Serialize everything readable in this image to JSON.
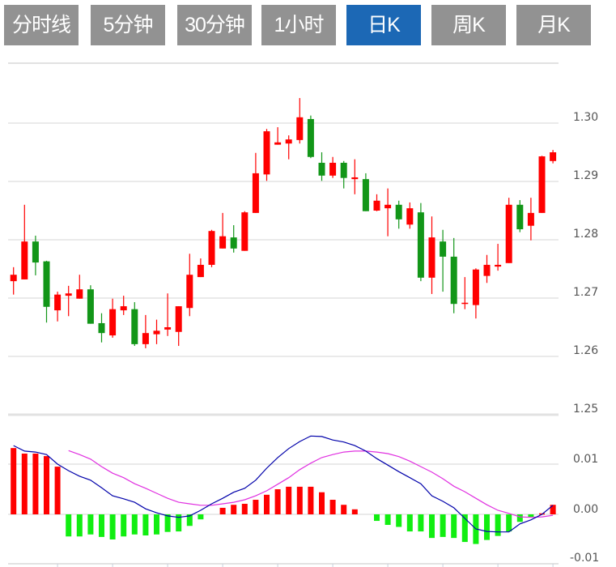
{
  "tabs": [
    {
      "label": "分时线",
      "active": false
    },
    {
      "label": "5分钟",
      "active": false
    },
    {
      "label": "30分钟",
      "active": false
    },
    {
      "label": "1小时",
      "active": false
    },
    {
      "label": "日K",
      "active": true
    },
    {
      "label": "周K",
      "active": false
    },
    {
      "label": "月K",
      "active": false
    }
  ],
  "colors": {
    "up": "#ff0000",
    "down": "#129618",
    "hist_up": "#ff0000",
    "hist_down": "#11ee11",
    "dif": "#0000aa",
    "dea": "#e030e0",
    "grid": "#dddddd",
    "active_tab": "#1c68b5",
    "tab": "#929292"
  },
  "chart_data": [
    {
      "type": "candlestick",
      "y_ticks": [
        "1.25",
        "1.26",
        "1.27",
        "1.28",
        "1.29",
        "1.30"
      ],
      "ylim": [
        1.25,
        1.31
      ],
      "grid": true,
      "ohlc": [
        [
          1.2729,
          1.2753,
          1.2706,
          1.274
        ],
        [
          1.2732,
          1.286,
          1.2732,
          1.2797
        ],
        [
          1.2797,
          1.2807,
          1.2739,
          1.2761
        ],
        [
          1.2763,
          1.2764,
          1.2658,
          1.2685
        ],
        [
          1.2679,
          1.2711,
          1.266,
          1.2706
        ],
        [
          1.2704,
          1.2721,
          1.2669,
          1.2708
        ],
        [
          1.2699,
          1.274,
          1.2699,
          1.2715
        ],
        [
          1.2715,
          1.2722,
          1.2656,
          1.2656
        ],
        [
          1.2657,
          1.2674,
          1.2624,
          1.264
        ],
        [
          1.2636,
          1.2699,
          1.2632,
          1.2681
        ],
        [
          1.2679,
          1.2704,
          1.2671,
          1.2686
        ],
        [
          1.2681,
          1.2693,
          1.2618,
          1.2621
        ],
        [
          1.2621,
          1.2671,
          1.2614,
          1.264
        ],
        [
          1.2638,
          1.2663,
          1.2621,
          1.2644
        ],
        [
          1.2646,
          1.2708,
          1.2635,
          1.265
        ],
        [
          1.2642,
          1.2686,
          1.2618,
          1.2686
        ],
        [
          1.2683,
          1.2776,
          1.2669,
          1.274
        ],
        [
          1.2736,
          1.2768,
          1.2736,
          1.2757
        ],
        [
          1.2757,
          1.2817,
          1.2753,
          1.2815
        ],
        [
          1.2785,
          1.2846,
          1.2785,
          1.2806
        ],
        [
          1.2804,
          1.2825,
          1.2778,
          1.2785
        ],
        [
          1.2781,
          1.2849,
          1.2781,
          1.2847
        ],
        [
          1.2846,
          1.2949,
          1.2846,
          1.2914
        ],
        [
          1.2912,
          1.299,
          1.2901,
          1.2986
        ],
        [
          1.2963,
          1.2993,
          1.2963,
          1.2967
        ],
        [
          1.2965,
          1.2979,
          1.2938,
          1.2972
        ],
        [
          1.2971,
          1.3043,
          1.2965,
          1.301
        ],
        [
          1.3007,
          1.3013,
          1.294,
          1.2942
        ],
        [
          1.2932,
          1.295,
          1.2901,
          1.291
        ],
        [
          1.291,
          1.2942,
          1.2906,
          1.2932
        ],
        [
          1.2932,
          1.2935,
          1.2888,
          1.2906
        ],
        [
          1.2904,
          1.2938,
          1.2878,
          1.2907
        ],
        [
          1.2904,
          1.2914,
          1.2849,
          1.2849
        ],
        [
          1.285,
          1.2878,
          1.2849,
          1.2867
        ],
        [
          1.2854,
          1.2888,
          1.2806,
          1.286
        ],
        [
          1.286,
          1.2867,
          1.2819,
          1.2835
        ],
        [
          1.2826,
          1.2864,
          1.2819,
          1.2854
        ],
        [
          1.2847,
          1.2863,
          1.2729,
          1.2735
        ],
        [
          1.2735,
          1.284,
          1.2707,
          1.2804
        ],
        [
          1.2797,
          1.2817,
          1.2711,
          1.2771
        ],
        [
          1.2771,
          1.2803,
          1.2674,
          1.269
        ],
        [
          1.269,
          1.2736,
          1.2681,
          1.2692
        ],
        [
          1.2688,
          1.2751,
          1.2665,
          1.2749
        ],
        [
          1.2738,
          1.2774,
          1.2726,
          1.2757
        ],
        [
          1.2754,
          1.2793,
          1.2747,
          1.2757
        ],
        [
          1.276,
          1.2872,
          1.276,
          1.286
        ],
        [
          1.286,
          1.2868,
          1.2813,
          1.2818
        ],
        [
          1.2824,
          1.2872,
          1.2799,
          1.2846
        ],
        [
          1.2846,
          1.2944,
          1.2846,
          1.2943
        ],
        [
          1.2935,
          1.2954,
          1.2931,
          1.295
        ]
      ]
    },
    {
      "type": "macd",
      "y_ticks": [
        "-0.01",
        "0.00",
        "0.01"
      ],
      "ylim": [
        -0.01,
        0.02
      ],
      "grid": true,
      "histogram": [
        0.0132,
        0.0121,
        0.0121,
        0.0116,
        0.0095,
        -0.0044,
        -0.0044,
        -0.004,
        -0.0045,
        -0.005,
        -0.0044,
        -0.004,
        -0.0042,
        -0.004,
        -0.0035,
        -0.0034,
        -0.0023,
        -0.001,
        0,
        0.0013,
        0.0019,
        0.0021,
        0.0029,
        0.0039,
        0.005,
        0.0055,
        0.0055,
        0.0055,
        0.0044,
        0.0029,
        0.0019,
        0.001,
        0,
        -0.0013,
        -0.0021,
        -0.0025,
        -0.0034,
        -0.0034,
        -0.0047,
        -0.0045,
        -0.0047,
        -0.0055,
        -0.0059,
        -0.0051,
        -0.0043,
        -0.0034,
        -0.0015,
        -0.0005,
        0.0002,
        0.0019
      ],
      "dif": [
        0.0137,
        0.0126,
        0.0124,
        0.0119,
        0.01,
        0.0087,
        0.0076,
        0.0068,
        0.0053,
        0.0037,
        0.0031,
        0.0024,
        0.0011,
        0.0003,
        -0.0003,
        -0.0006,
        -0.0003,
        0.0008,
        0.0021,
        0.0032,
        0.0044,
        0.0052,
        0.0068,
        0.0092,
        0.0113,
        0.0131,
        0.0145,
        0.0156,
        0.0155,
        0.0148,
        0.0144,
        0.0137,
        0.0126,
        0.0111,
        0.0098,
        0.0085,
        0.0073,
        0.0061,
        0.0037,
        0.0026,
        0.0013,
        -0.0008,
        -0.0029,
        -0.0034,
        -0.0035,
        -0.0035,
        -0.0019,
        -0.0011,
        0.0,
        0.0018
      ],
      "dea": [
        null,
        null,
        null,
        null,
        null,
        0.0127,
        0.0119,
        0.011,
        0.0095,
        0.0082,
        0.0073,
        0.0061,
        0.0052,
        0.0042,
        0.0032,
        0.0024,
        0.0021,
        0.0018,
        0.0018,
        0.0021,
        0.0024,
        0.0029,
        0.0037,
        0.0047,
        0.006,
        0.0073,
        0.0089,
        0.0102,
        0.0113,
        0.0119,
        0.0124,
        0.0126,
        0.0126,
        0.0124,
        0.0121,
        0.0115,
        0.0106,
        0.0095,
        0.0084,
        0.0071,
        0.0056,
        0.0045,
        0.0032,
        0.0019,
        0.0008,
        0.0002,
        -0.0005,
        -0.0006,
        -0.0005,
        -0.0002
      ]
    }
  ]
}
